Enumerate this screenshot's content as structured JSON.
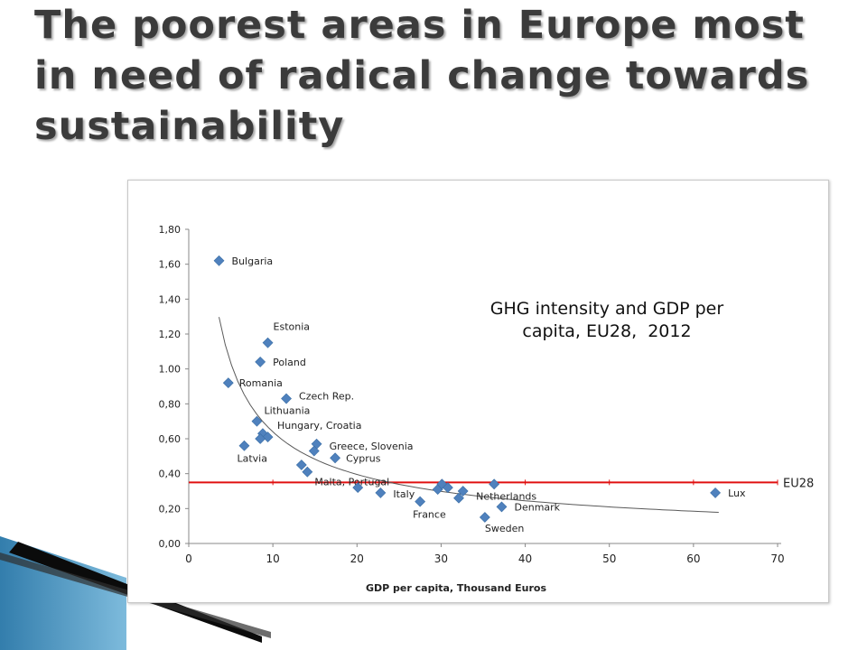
{
  "slide": {
    "title": "The poorest areas in Europe most in need of radical change towards sustainability"
  },
  "colors": {
    "title_text": "#3b3b3b",
    "marker": "#4f81bd",
    "eu28_line": "#e01010",
    "trend_line": "#595959",
    "deco_dark": "#0b0b0b",
    "deco_blue": "#1c6fa3"
  },
  "chart_data": {
    "type": "scatter",
    "xlabel": "GDP per capita, Thousand Euros",
    "ylabel": "",
    "xlim": [
      0,
      70
    ],
    "ylim": [
      0,
      1.8
    ],
    "x_ticks": [
      "0",
      "10",
      "20",
      "30",
      "40",
      "50",
      "60",
      "70"
    ],
    "y_ticks": [
      "0,00",
      "0,20",
      "0,40",
      "0,60",
      "0,80",
      "1.00",
      "1,20",
      "1,40",
      "1,60",
      "1,80"
    ],
    "grid": false,
    "annotation_lines": [
      "GHG intensity and GDP per",
      "capita, EU28,  2012"
    ],
    "reference_line": {
      "label": "EU28",
      "y": 0.35
    },
    "trendline": {
      "type": "power",
      "from_x": 3.6,
      "to_x": 63
    },
    "points": [
      {
        "label": "Bulgaria",
        "x": 3.6,
        "y": 1.62
      },
      {
        "label": "Estonia",
        "x": 9.4,
        "y": 1.15
      },
      {
        "label": "Poland",
        "x": 8.5,
        "y": 1.04
      },
      {
        "label": "Romania",
        "x": 4.7,
        "y": 0.92
      },
      {
        "label": "Czech Rep.",
        "x": 11.6,
        "y": 0.83
      },
      {
        "label": "Lithuania",
        "x": 8.1,
        "y": 0.7
      },
      {
        "label": "Hungary, Croatia",
        "x": 8.8,
        "y": 0.63
      },
      {
        "label": "",
        "x": 9.4,
        "y": 0.61
      },
      {
        "label": "",
        "x": 8.5,
        "y": 0.6
      },
      {
        "label": "Latvia",
        "x": 6.6,
        "y": 0.56
      },
      {
        "label": "Greece, Slovenia",
        "x": 15.2,
        "y": 0.57
      },
      {
        "label": "",
        "x": 14.9,
        "y": 0.53
      },
      {
        "label": "Cyprus",
        "x": 17.4,
        "y": 0.49
      },
      {
        "label": "",
        "x": 13.4,
        "y": 0.45
      },
      {
        "label": "Malta, Portugal",
        "x": 14.1,
        "y": 0.41
      },
      {
        "label": "",
        "x": 20.1,
        "y": 0.32
      },
      {
        "label": "Italy",
        "x": 22.8,
        "y": 0.29
      },
      {
        "label": "France",
        "x": 27.5,
        "y": 0.24
      },
      {
        "label": "",
        "x": 29.6,
        "y": 0.31
      },
      {
        "label": "",
        "x": 30.1,
        "y": 0.34
      },
      {
        "label": "",
        "x": 30.8,
        "y": 0.32
      },
      {
        "label": "",
        "x": 32.1,
        "y": 0.26
      },
      {
        "label": "",
        "x": 32.6,
        "y": 0.3
      },
      {
        "label": "Netherlands",
        "x": 36.3,
        "y": 0.34
      },
      {
        "label": "Denmark",
        "x": 37.2,
        "y": 0.21
      },
      {
        "label": "Sweden",
        "x": 35.2,
        "y": 0.15
      },
      {
        "label": "Lux",
        "x": 62.6,
        "y": 0.29
      }
    ]
  }
}
